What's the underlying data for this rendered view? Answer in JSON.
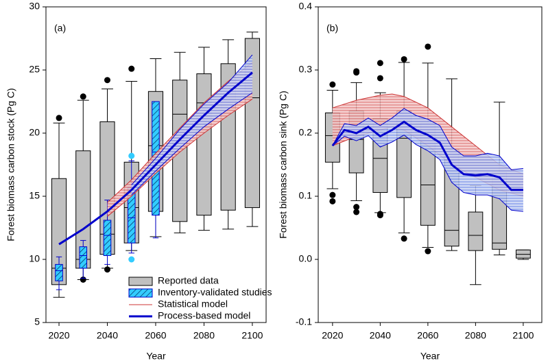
{
  "chart_data": [
    {
      "type": "box-line",
      "annotation": "(a)",
      "x_label": "Year",
      "y_label": "Forest biomass carbon stock (Pg C)",
      "xlim": [
        2014.6,
        2105.7
      ],
      "xticks": [
        2020,
        2040,
        2060,
        2080,
        2100
      ],
      "ylim": [
        5,
        30
      ],
      "yticks": [
        5,
        10,
        15,
        20,
        25,
        30
      ],
      "legend": "lower right",
      "series": [
        {
          "name": "Reported data",
          "kind": "box",
          "color": "#c0c0c0",
          "outlier_color": "#000000",
          "width": 6,
          "boxes": [
            {
              "x": 2020,
              "whisker_low": 7.0,
              "q1": 8.0,
              "median": 9.3,
              "q3": 16.4,
              "whisker_high": 20.8,
              "outliers": [
                21.2
              ]
            },
            {
              "x": 2030,
              "whisker_low": 8.4,
              "q1": 9.3,
              "median": 10.0,
              "q3": 18.6,
              "whisker_high": 22.6,
              "outliers": [
                22.9,
                8.4
              ]
            },
            {
              "x": 2040,
              "whisker_low": 9.3,
              "q1": 10.4,
              "median": 12.0,
              "q3": 20.9,
              "whisker_high": 23.5,
              "outliers": [
                24.2,
                9.2
              ]
            },
            {
              "x": 2050,
              "whisker_low": 10.7,
              "q1": 11.3,
              "median": 14.1,
              "q3": 17.7,
              "whisker_high": 24.1,
              "outliers": [
                25.1
              ]
            },
            {
              "x": 2060,
              "whisker_low": 11.8,
              "q1": 13.8,
              "median": 19.0,
              "q3": 23.3,
              "whisker_high": 25.9,
              "outliers": []
            },
            {
              "x": 2070,
              "whisker_low": 12.1,
              "q1": 13.0,
              "median": 21.5,
              "q3": 24.2,
              "whisker_high": 26.4,
              "outliers": []
            },
            {
              "x": 2080,
              "whisker_low": 12.3,
              "q1": 13.5,
              "median": 22.4,
              "q3": 24.7,
              "whisker_high": 26.8,
              "outliers": []
            },
            {
              "x": 2090,
              "whisker_low": 12.4,
              "q1": 13.9,
              "median": 22.6,
              "q3": 25.5,
              "whisker_high": 27.4,
              "outliers": []
            },
            {
              "x": 2100,
              "whisker_low": 12.6,
              "q1": 14.1,
              "median": 22.8,
              "q3": 27.5,
              "whisker_high": 28.0,
              "outliers": []
            }
          ]
        },
        {
          "name": "Inventory-validated studies",
          "kind": "box-hatched",
          "color": "#33ccff",
          "outlier_color": "#33ccff",
          "width": 3,
          "boxes": [
            {
              "x": 2020,
              "whisker_low": 7.6,
              "q1": 8.3,
              "median": 9.1,
              "q3": 9.6,
              "whisker_high": 10.2,
              "outliers": []
            },
            {
              "x": 2030,
              "whisker_low": 8.5,
              "q1": 9.3,
              "median": 10.3,
              "q3": 11.0,
              "whisker_high": 11.5,
              "outliers": []
            },
            {
              "x": 2040,
              "whisker_low": 9.6,
              "q1": 10.3,
              "median": 11.9,
              "q3": 13.1,
              "whisker_high": 14.7,
              "outliers": []
            },
            {
              "x": 2050,
              "whisker_low": 10.5,
              "q1": 11.3,
              "median": 13.3,
              "q3": 15.7,
              "whisker_high": 17.8,
              "outliers": [
                18.2,
                10.0
              ]
            },
            {
              "x": 2060,
              "whisker_low": 11.7,
              "q1": 13.5,
              "median": 18.5,
              "q3": 22.5,
              "whisker_high": 22.5,
              "outliers": []
            }
          ]
        },
        {
          "name": "Statistical model",
          "kind": "band",
          "color": "#cc3333",
          "x": [
            2040,
            2050,
            2060,
            2070,
            2080,
            2090,
            2100
          ],
          "lower": [
            13.4,
            15.0,
            16.8,
            18.5,
            20.0,
            21.4,
            22.7
          ],
          "upper": [
            14.5,
            16.3,
            18.4,
            20.4,
            22.4,
            24.1,
            25.6
          ]
        },
        {
          "name": "Process-based model",
          "kind": "line",
          "color": "#0000cc",
          "x": [
            2020,
            2030,
            2040,
            2050,
            2060,
            2070,
            2080,
            2090,
            2100
          ],
          "values": [
            11.2,
            12.4,
            13.8,
            15.5,
            17.5,
            19.5,
            21.4,
            23.2,
            24.8
          ],
          "lower": [
            null,
            null,
            null,
            15.1,
            17.0,
            18.8,
            20.5,
            21.9,
            23.2
          ],
          "upper": [
            null,
            null,
            null,
            15.9,
            18.0,
            20.3,
            22.3,
            24.0,
            26.2
          ]
        }
      ]
    },
    {
      "type": "box-line",
      "annotation": "(b)",
      "x_label": "Year",
      "y_label": "Forest biomass carbon sink (Pg C)",
      "xlim": [
        2014,
        2107.8
      ],
      "xticks": [
        2020,
        2040,
        2060,
        2080,
        2100
      ],
      "ylim": [
        -0.1,
        0.4
      ],
      "yticks": [
        -0.1,
        {
          "value": 0,
          "label": "0.0"
        },
        0.1,
        0.2,
        0.3,
        0.4
      ],
      "legend": "none",
      "series": [
        {
          "kind": "box",
          "color": "#c0c0c0",
          "outlier_color": "#000000",
          "width": 6,
          "boxes": [
            {
              "x": 2020,
              "whisker_low": 0.112,
              "q1": 0.154,
              "median": 0.196,
              "q3": 0.232,
              "whisker_high": 0.268,
              "outliers": [
                0.277,
                0.102,
                0.092
              ]
            },
            {
              "x": 2030,
              "whisker_low": 0.093,
              "q1": 0.137,
              "median": 0.19,
              "q3": 0.235,
              "whisker_high": 0.28,
              "outliers": [
                0.296,
                0.298,
                0.083,
                0.075
              ]
            },
            {
              "x": 2040,
              "whisker_low": 0.074,
              "q1": 0.106,
              "median": 0.16,
              "q3": 0.223,
              "whisker_high": 0.264,
              "outliers": [
                0.311,
                0.287,
                0.072,
                0.07
              ]
            },
            {
              "x": 2050,
              "whisker_low": 0.042,
              "q1": 0.098,
              "median": 0.192,
              "q3": 0.235,
              "whisker_high": 0.312,
              "outliers": [
                0.317,
                0.033
              ]
            },
            {
              "x": 2060,
              "whisker_low": 0.019,
              "q1": 0.054,
              "median": 0.118,
              "q3": 0.216,
              "whisker_high": 0.311,
              "outliers": [
                0.337,
                0.013
              ]
            },
            {
              "x": 2070,
              "whisker_low": 0.014,
              "q1": 0.021,
              "median": 0.046,
              "q3": 0.174,
              "whisker_high": 0.286,
              "outliers": []
            },
            {
              "x": 2080,
              "whisker_low": -0.04,
              "q1": 0.014,
              "median": 0.038,
              "q3": 0.075,
              "whisker_high": 0.117,
              "outliers": []
            },
            {
              "x": 2090,
              "whisker_low": 0.007,
              "q1": 0.016,
              "median": 0.026,
              "q3": 0.138,
              "whisker_high": 0.249,
              "outliers": []
            },
            {
              "x": 2100,
              "whisker_low": 0.0,
              "q1": 0.002,
              "median": 0.008,
              "q3": 0.015,
              "whisker_high": 0.015,
              "outliers": []
            }
          ]
        },
        {
          "kind": "band",
          "color": "#cc3333",
          "x": [
            2020,
            2030,
            2040,
            2045,
            2050,
            2060,
            2070,
            2080,
            2090,
            2100
          ],
          "lower": [
            0.18,
            0.195,
            0.205,
            0.21,
            0.205,
            0.18,
            0.15,
            0.13,
            0.11,
            0.1
          ],
          "upper": [
            0.24,
            0.252,
            0.26,
            0.262,
            0.258,
            0.24,
            0.21,
            0.18,
            0.15,
            0.135
          ]
        },
        {
          "kind": "line",
          "color": "#0000cc",
          "x": [
            2020,
            2025,
            2030,
            2035,
            2040,
            2045,
            2050,
            2055,
            2060,
            2065,
            2070,
            2075,
            2080,
            2085,
            2090,
            2095,
            2100
          ],
          "values": [
            0.18,
            0.205,
            0.2,
            0.21,
            0.195,
            0.205,
            0.218,
            0.205,
            0.197,
            0.185,
            0.15,
            0.135,
            0.133,
            0.135,
            0.13,
            0.11,
            0.11
          ],
          "lower": [
            0.18,
            0.195,
            0.188,
            0.196,
            0.178,
            0.186,
            0.197,
            0.182,
            0.172,
            0.158,
            0.122,
            0.106,
            0.102,
            0.102,
            0.096,
            0.078,
            0.076
          ],
          "upper": [
            0.18,
            0.215,
            0.212,
            0.224,
            0.212,
            0.224,
            0.239,
            0.228,
            0.222,
            0.212,
            0.178,
            0.164,
            0.164,
            0.168,
            0.164,
            0.142,
            0.144
          ]
        }
      ]
    }
  ]
}
